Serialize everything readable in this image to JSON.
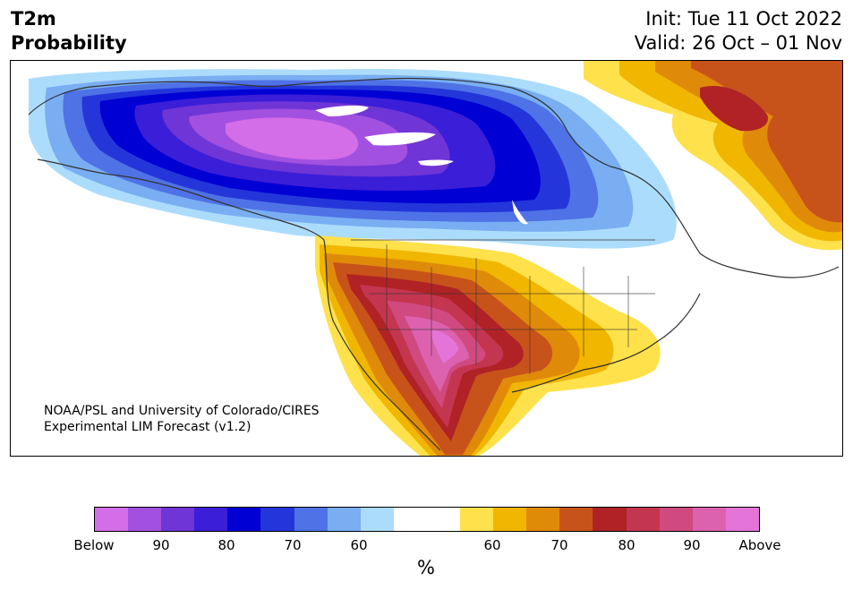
{
  "header": {
    "title_line1": "T2m",
    "title_line2": "Probability",
    "init_text": "Init: Tue 11 Oct 2022",
    "valid_text": "Valid: 26 Oct – 01 Nov"
  },
  "map": {
    "credit_line1": "NOAA/PSL and University of Colorado/CIRES",
    "credit_line2": "Experimental LIM Forecast (v1.2)"
  },
  "colorbar": {
    "unit": "%",
    "colors": [
      "#d36de8",
      "#a250e0",
      "#7035d6",
      "#3b1ed8",
      "#0000d4",
      "#2436da",
      "#4f72e6",
      "#79aef2",
      "#acdcfb",
      "#ffffff",
      "#ffffff",
      "#ffe14b",
      "#f0b600",
      "#e08a0a",
      "#c8531a",
      "#b02226",
      "#c43550",
      "#d04a80",
      "#dc62b0",
      "#e474d8"
    ],
    "tick_labels": [
      "Below",
      "90",
      "80",
      "70",
      "60",
      "60",
      "70",
      "80",
      "90",
      "Above"
    ]
  }
}
